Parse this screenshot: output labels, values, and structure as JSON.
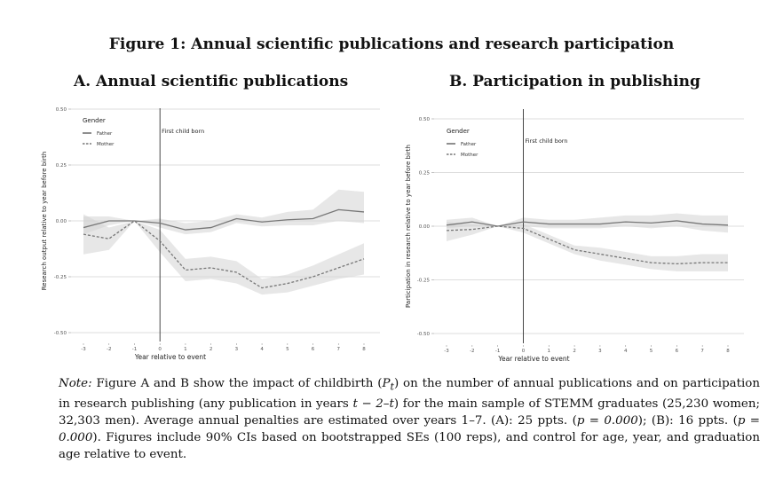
{
  "figure_title": "Figure 1: Annual scientific publications and research participation",
  "panels": {
    "a_title": "A. Annual scientific publications",
    "b_title": "B. Participation in publishing"
  },
  "note": {
    "label": "Note:",
    "p1": " Figure A and B show the impact of childbirth (",
    "p2": ") on the number of annual publications and on participation in research publishing (any publication in years ",
    "p3": ") for the main sample of STEMM graduates (25,230 women; 32,303 men). Average annual penalties are estimated over years 1–7. (A): 25 ppts. (",
    "p4": "); (B): 16 ppts. (",
    "p5": "). Figures include 90% CIs based on bootstrapped SEs (100 reps), and control for age, year, and graduation age relative to event.",
    "math_P": "P",
    "math_t": "t",
    "math_range": "t − 2–t",
    "math_p": "p = 0.000",
    "math_p2": "p = 0.000"
  },
  "chart_data": [
    {
      "type": "line",
      "title": "A. Annual scientific publications",
      "xlabel": "Year relative to event",
      "ylabel": "Research output relative to year before birth",
      "x": [
        -3,
        -2,
        -1,
        0,
        1,
        2,
        3,
        4,
        5,
        6,
        7,
        8
      ],
      "x_ticks": [
        "-3",
        "-2",
        "-1",
        "0",
        "1",
        "2",
        "3",
        "4",
        "5",
        "6",
        "7",
        "8"
      ],
      "ylim": [
        -0.5,
        0.5
      ],
      "y_ticks": [
        "0.50",
        "0.25",
        "0.00",
        "-0.25",
        "-0.50"
      ],
      "y_tick_values": [
        0.5,
        0.25,
        0.0,
        -0.25,
        -0.5
      ],
      "event_label": "First child born",
      "event_x": 0,
      "legend": {
        "title": "Gender",
        "position": "top-left"
      },
      "series": [
        {
          "name": "Father",
          "style": "solid",
          "color": "#777777",
          "values": [
            -0.03,
            0.0,
            0.0,
            -0.01,
            -0.04,
            -0.03,
            0.01,
            -0.005,
            0.005,
            0.01,
            0.05,
            0.04
          ],
          "ci_low": [
            -0.06,
            -0.02,
            0.0,
            -0.03,
            -0.06,
            -0.05,
            -0.01,
            -0.025,
            -0.02,
            -0.02,
            0.0,
            -0.01
          ],
          "ci_high": [
            0.02,
            0.02,
            0.0,
            0.01,
            -0.01,
            0.0,
            0.03,
            0.015,
            0.04,
            0.05,
            0.14,
            0.13
          ]
        },
        {
          "name": "Mother",
          "style": "dashed",
          "color": "#777777",
          "values": [
            -0.06,
            -0.08,
            0.0,
            -0.09,
            -0.22,
            -0.21,
            -0.23,
            -0.3,
            -0.28,
            -0.25,
            -0.21,
            -0.17
          ],
          "ci_low": [
            -0.15,
            -0.13,
            0.0,
            -0.14,
            -0.27,
            -0.26,
            -0.28,
            -0.33,
            -0.32,
            -0.29,
            -0.26,
            -0.24
          ],
          "ci_high": [
            0.03,
            -0.03,
            0.0,
            -0.04,
            -0.17,
            -0.16,
            -0.18,
            -0.26,
            -0.24,
            -0.2,
            -0.15,
            -0.1
          ]
        }
      ]
    },
    {
      "type": "line",
      "title": "B. Participation in publishing",
      "xlabel": "Year relative to event",
      "ylabel": "Participation in research relative to year before birth",
      "x": [
        -3,
        -2,
        -1,
        0,
        1,
        2,
        3,
        4,
        5,
        6,
        7,
        8
      ],
      "x_ticks": [
        "-3",
        "-2",
        "-1",
        "0",
        "1",
        "2",
        "3",
        "4",
        "5",
        "6",
        "7",
        "8"
      ],
      "ylim": [
        -0.5,
        0.5
      ],
      "y_ticks": [
        "0.50",
        "0.25",
        "0.00",
        "-0.25",
        "-0.50"
      ],
      "y_tick_values": [
        0.5,
        0.25,
        0.0,
        -0.25,
        -0.5
      ],
      "event_label": "First child born",
      "event_x": 0,
      "legend": {
        "title": "Gender",
        "position": "top-left"
      },
      "series": [
        {
          "name": "Father",
          "style": "solid",
          "color": "#777777",
          "values": [
            0.005,
            0.02,
            0.0,
            0.02,
            0.01,
            0.01,
            0.01,
            0.02,
            0.015,
            0.025,
            0.01,
            0.005
          ],
          "ci_low": [
            -0.01,
            0.0,
            0.0,
            0.0,
            -0.01,
            -0.01,
            -0.01,
            0.0,
            -0.01,
            0.0,
            -0.02,
            -0.03
          ],
          "ci_high": [
            0.03,
            0.04,
            0.0,
            0.04,
            0.03,
            0.03,
            0.04,
            0.05,
            0.05,
            0.06,
            0.05,
            0.05
          ]
        },
        {
          "name": "Mother",
          "style": "dashed",
          "color": "#777777",
          "values": [
            -0.02,
            -0.015,
            0.0,
            -0.01,
            -0.06,
            -0.11,
            -0.13,
            -0.15,
            -0.17,
            -0.175,
            -0.17,
            -0.17
          ],
          "ci_low": [
            -0.07,
            -0.04,
            0.0,
            -0.03,
            -0.08,
            -0.13,
            -0.16,
            -0.18,
            -0.2,
            -0.21,
            -0.21,
            -0.21
          ],
          "ci_high": [
            0.02,
            0.01,
            0.0,
            0.01,
            -0.04,
            -0.09,
            -0.1,
            -0.12,
            -0.14,
            -0.14,
            -0.13,
            -0.13
          ]
        }
      ]
    }
  ]
}
